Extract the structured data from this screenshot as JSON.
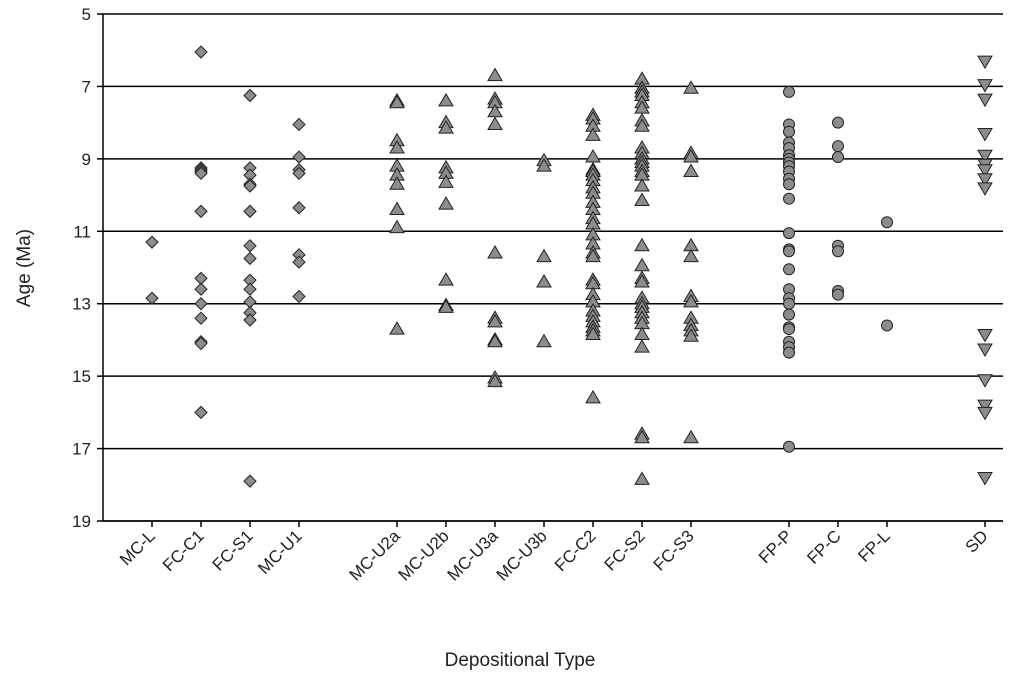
{
  "chart_data": {
    "type": "strip",
    "x_label": "Depositional Type",
    "y_label": "Age (Ma)",
    "categories": [
      "MC-L",
      "FC-C1",
      "FC-S1",
      "MC-U1",
      null,
      "MC-U2a",
      "MC-U2b",
      "MC-U3a",
      "MC-U3b",
      "FC-C2",
      "FC-S2",
      "FC-S3",
      null,
      "FP-P",
      "FP-C",
      "FP-L",
      null,
      "SD"
    ],
    "markers": [
      "diamond",
      "diamond",
      "diamond",
      "diamond",
      null,
      "triangle",
      "triangle",
      "triangle",
      "triangle",
      "triangle",
      "triangle",
      "triangle",
      null,
      "circle",
      "circle",
      "circle",
      null,
      "triangle-down"
    ],
    "color": "#8c8c8c",
    "values": [
      [
        11.3,
        12.85
      ],
      [
        6.05,
        9.25,
        9.3,
        9.35,
        9.4,
        10.45,
        12.3,
        12.6,
        13.0,
        13.4,
        14.05,
        14.1,
        16.0
      ],
      [
        7.25,
        9.25,
        9.45,
        9.7,
        9.75,
        10.45,
        11.4,
        11.75,
        12.35,
        12.6,
        12.95,
        13.25,
        13.45,
        17.9
      ],
      [
        8.05,
        8.95,
        9.3,
        9.4,
        10.35,
        11.65,
        11.85,
        12.8
      ],
      null,
      [
        7.4,
        7.45,
        8.5,
        8.7,
        9.2,
        9.45,
        9.7,
        10.4,
        10.9,
        13.7
      ],
      [
        7.4,
        8.0,
        8.15,
        9.25,
        9.4,
        9.65,
        10.25,
        12.35,
        13.05,
        13.1
      ],
      [
        6.7,
        7.35,
        7.45,
        7.7,
        8.05,
        11.6,
        13.4,
        13.5,
        14.0,
        14.05,
        15.05,
        15.15
      ],
      [
        9.05,
        9.2,
        11.7,
        12.4,
        14.05
      ],
      [
        7.8,
        7.9,
        8.1,
        8.35,
        8.95,
        9.3,
        9.35,
        9.45,
        9.6,
        9.8,
        9.95,
        10.2,
        10.4,
        10.65,
        10.8,
        11.1,
        11.35,
        11.6,
        11.7,
        12.35,
        12.45,
        12.75,
        12.95,
        13.2,
        13.35,
        13.5,
        13.65,
        13.75,
        13.85,
        15.6
      ],
      [
        6.8,
        7.05,
        7.15,
        7.25,
        7.45,
        7.6,
        7.95,
        8.1,
        8.7,
        8.85,
        9.0,
        9.1,
        9.2,
        9.35,
        9.45,
        9.75,
        10.15,
        11.4,
        11.95,
        12.3,
        12.4,
        12.85,
        13.0,
        13.1,
        13.25,
        13.4,
        13.55,
        13.85,
        14.2,
        16.6,
        16.7,
        17.85
      ],
      [
        7.05,
        8.85,
        8.95,
        9.35,
        11.4,
        11.7,
        12.8,
        12.95,
        13.4,
        13.6,
        13.75,
        13.9,
        16.7
      ],
      null,
      [
        7.15,
        8.05,
        8.25,
        8.55,
        8.7,
        8.9,
        9.0,
        9.1,
        9.2,
        9.35,
        9.55,
        9.7,
        10.1,
        11.05,
        11.5,
        11.55,
        12.05,
        12.6,
        12.85,
        13.0,
        13.3,
        13.65,
        13.7,
        14.05,
        14.2,
        14.35,
        16.95
      ],
      [
        8.0,
        8.65,
        8.95,
        11.4,
        11.55,
        12.65,
        12.75
      ],
      [
        10.75,
        13.6
      ],
      null,
      [
        6.3,
        6.95,
        7.35,
        8.3,
        8.9,
        9.15,
        9.3,
        9.55,
        9.8,
        13.85,
        14.25,
        15.1,
        15.8,
        16.0,
        17.8
      ]
    ],
    "ylim": [
      5,
      19
    ],
    "y_inverted": true,
    "yticks": [
      5,
      7,
      9,
      11,
      13,
      15,
      17,
      19
    ],
    "grid": true
  }
}
